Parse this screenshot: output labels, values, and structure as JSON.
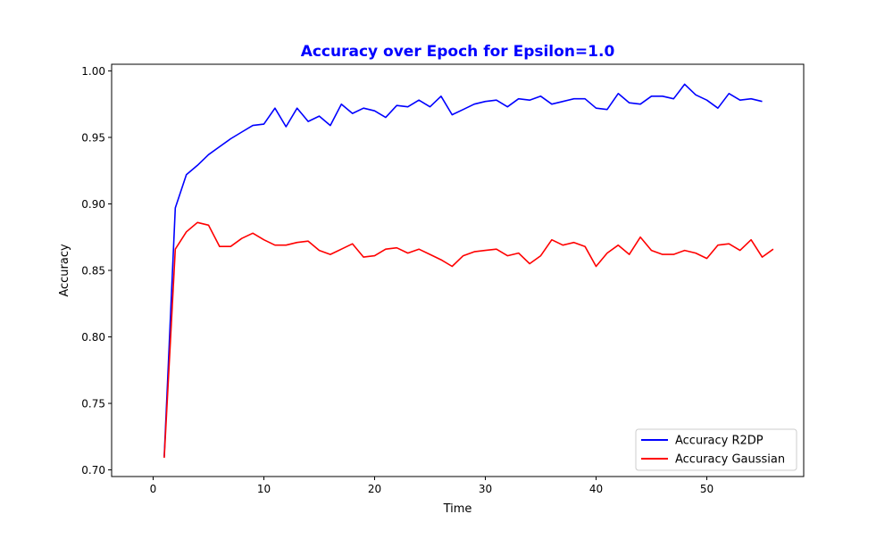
{
  "chart_data": {
    "type": "line",
    "title": "Accuracy over Epoch for Epsilon=1.0",
    "title_color": "#0000ff",
    "xlabel": "Time",
    "ylabel": "Accuracy",
    "xlim": [
      -3.75,
      58.75
    ],
    "ylim": [
      0.695,
      1.005
    ],
    "x_ticks": [
      0,
      10,
      20,
      30,
      40,
      50
    ],
    "x_tick_labels": [
      "0",
      "10",
      "20",
      "30",
      "40",
      "50"
    ],
    "y_ticks": [
      0.7,
      0.75,
      0.8,
      0.85,
      0.9,
      0.95,
      1.0
    ],
    "y_tick_labels": [
      "0.70",
      "0.75",
      "0.80",
      "0.85",
      "0.90",
      "0.95",
      "1.00"
    ],
    "grid": false,
    "legend_position": "lower-right",
    "series": [
      {
        "name": "Accuracy R2DP",
        "color": "#0000ff",
        "x": [
          1,
          2,
          3,
          4,
          5,
          6,
          7,
          8,
          9,
          10,
          11,
          12,
          13,
          14,
          15,
          16,
          17,
          18,
          19,
          20,
          21,
          22,
          23,
          24,
          25,
          26,
          27,
          28,
          29,
          30,
          31,
          32,
          33,
          34,
          35,
          36,
          37,
          38,
          39,
          40,
          41,
          42,
          43,
          44,
          45,
          46,
          47,
          48,
          49,
          50,
          51,
          52,
          53,
          54,
          55
        ],
        "values": [
          0.71,
          0.897,
          0.922,
          0.929,
          0.937,
          0.943,
          0.949,
          0.954,
          0.959,
          0.96,
          0.972,
          0.958,
          0.972,
          0.962,
          0.966,
          0.959,
          0.975,
          0.968,
          0.972,
          0.97,
          0.965,
          0.974,
          0.973,
          0.978,
          0.973,
          0.981,
          0.967,
          0.971,
          0.975,
          0.977,
          0.978,
          0.973,
          0.979,
          0.978,
          0.981,
          0.975,
          0.977,
          0.979,
          0.979,
          0.972,
          0.971,
          0.983,
          0.976,
          0.975,
          0.981,
          0.981,
          0.979,
          0.99,
          0.982,
          0.978,
          0.972,
          0.983,
          0.978,
          0.979,
          0.977
        ]
      },
      {
        "name": "Accuracy Gaussian",
        "color": "#ff0000",
        "x": [
          1,
          2,
          3,
          4,
          5,
          6,
          7,
          8,
          9,
          10,
          11,
          12,
          13,
          14,
          15,
          16,
          17,
          18,
          19,
          20,
          21,
          22,
          23,
          24,
          25,
          26,
          27,
          28,
          29,
          30,
          31,
          32,
          33,
          34,
          35,
          36,
          37,
          38,
          39,
          40,
          41,
          42,
          43,
          44,
          45,
          46,
          47,
          48,
          49,
          50,
          51,
          52,
          53,
          54,
          55,
          56
        ],
        "values": [
          0.709,
          0.866,
          0.879,
          0.886,
          0.884,
          0.868,
          0.868,
          0.874,
          0.878,
          0.873,
          0.869,
          0.869,
          0.871,
          0.872,
          0.865,
          0.862,
          0.866,
          0.87,
          0.86,
          0.861,
          0.866,
          0.867,
          0.863,
          0.866,
          0.862,
          0.858,
          0.853,
          0.861,
          0.864,
          0.865,
          0.866,
          0.861,
          0.863,
          0.855,
          0.861,
          0.873,
          0.869,
          0.871,
          0.868,
          0.853,
          0.863,
          0.869,
          0.862,
          0.875,
          0.865,
          0.862,
          0.862,
          0.865,
          0.863,
          0.859,
          0.869,
          0.87,
          0.865,
          0.873,
          0.86,
          0.866
        ]
      }
    ]
  }
}
